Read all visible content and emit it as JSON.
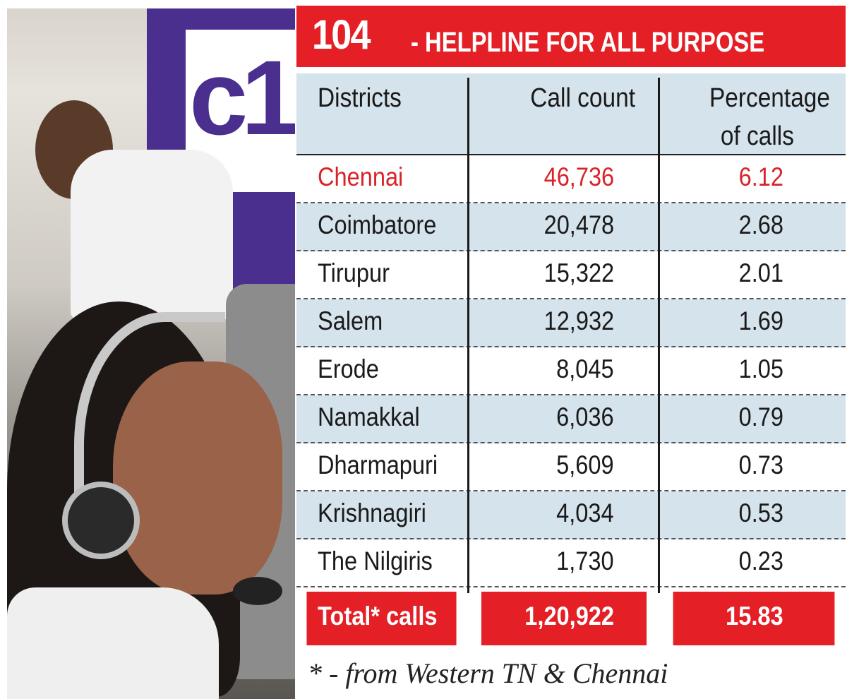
{
  "title": {
    "number": "104",
    "text": "- HELPLINE FOR ALL PURPOSE"
  },
  "colors": {
    "accent_red": "#e41f26",
    "row_blue": "#d5e3ec",
    "highlight_text": "#d8232a"
  },
  "photo": {
    "description_icon": "call-center-photo"
  },
  "chart_data": {
    "type": "table",
    "title": "104 - HELPLINE FOR ALL PURPOSE",
    "columns": [
      "Districts",
      "Call count",
      "Percentage of calls"
    ],
    "header_pct_line2": "of calls",
    "rows": [
      [
        "Chennai",
        "46,736",
        "6.12"
      ],
      [
        "Coimbatore",
        "20,478",
        "2.68"
      ],
      [
        "Tirupur",
        "15,322",
        "2.01"
      ],
      [
        "Salem",
        "12,932",
        "1.69"
      ],
      [
        "Erode",
        "8,045",
        "1.05"
      ],
      [
        "Namakkal",
        "6,036",
        "0.79"
      ],
      [
        "Dharmapuri",
        "5,609",
        "0.73"
      ],
      [
        "Krishnagiri",
        "4,034",
        "0.53"
      ],
      [
        "The Nilgiris",
        "1,730",
        "0.23"
      ]
    ],
    "total": [
      "Total* calls",
      "1,20,922",
      "15.83"
    ],
    "footnote": "* - from Western TN & Chennai"
  }
}
